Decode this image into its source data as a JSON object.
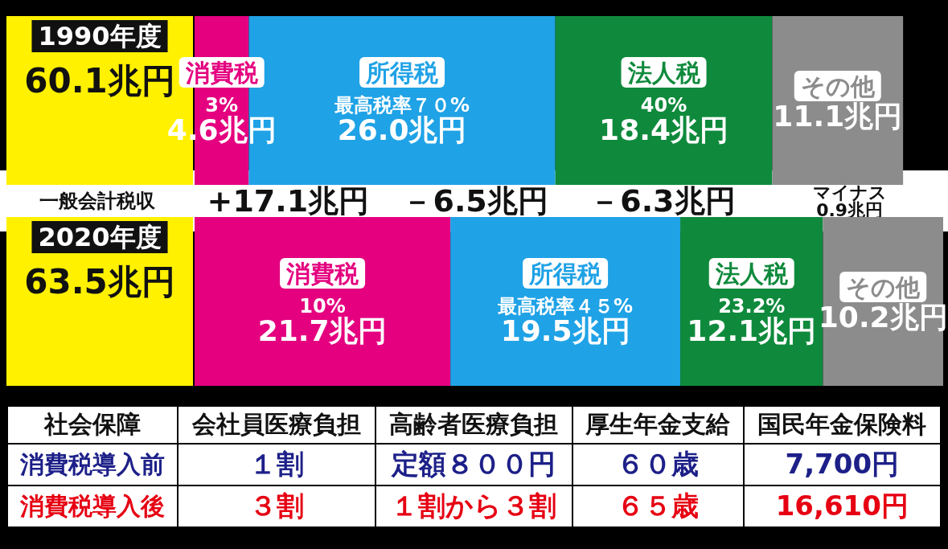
{
  "chart_data": [
    {
      "type": "bar",
      "orientation": "horizontal",
      "stacked": true,
      "legend": false,
      "grid": false,
      "data_labels": true,
      "categories": [
        "1990年度",
        "2020年度"
      ],
      "totals": [
        "60.1兆円",
        "63.5兆円"
      ],
      "series": [
        {
          "name": "消費税",
          "color": "#e4007f",
          "values": [
            4.6,
            21.7
          ],
          "value_labels": [
            "3%\n4.6兆円",
            "10%\n21.7兆円"
          ]
        },
        {
          "name": "所得税",
          "color": "#1fa2e6",
          "values": [
            26.0,
            19.5
          ],
          "value_labels": [
            "最高税率７０%\n26.0兆円",
            "最高税率４５%\n19.5兆円"
          ]
        },
        {
          "name": "法人税",
          "color": "#0f8a3c",
          "values": [
            18.4,
            12.1
          ],
          "value_labels": [
            "40%\n18.4兆円",
            "23.2%\n12.1兆円"
          ]
        },
        {
          "name": "その他",
          "color": "#8c8c8c",
          "values": [
            11.1,
            10.2
          ],
          "value_labels": [
            "11.1兆円",
            "10.2兆円"
          ]
        }
      ],
      "annotations": [
        "一般会計税収",
        "+17.1兆円",
        "－6.5兆円",
        "－6.3兆円",
        "マイナス\n0.9兆円"
      ]
    },
    {
      "type": "other",
      "title": "社会保障",
      "categories": [
        "会社員医療負担",
        "高齢者医療負担",
        "厚生年金支給",
        "国民年金保険料"
      ],
      "y_categories": [
        "消費税導入前",
        "消費税導入後"
      ],
      "cell_labels": [
        [
          "１割",
          "定額８００円",
          "６０歳",
          "7,700円"
        ],
        [
          "３割",
          "１割から３割",
          "６５歳",
          "16,610円"
        ]
      ]
    }
  ]
}
